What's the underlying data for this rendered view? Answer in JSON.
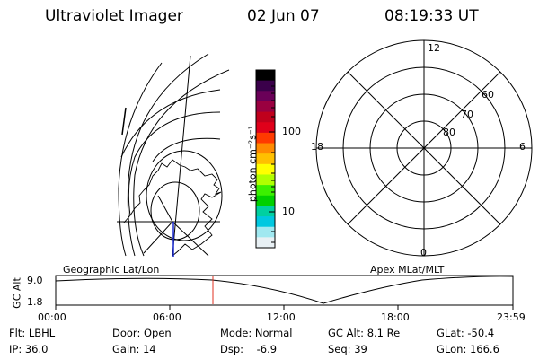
{
  "header": {
    "instrument": "Ultraviolet Imager",
    "date": "02 Jun 07",
    "time": "08:19:33 UT"
  },
  "colorbar": {
    "unit_label": "photon cm⁻²s⁻¹",
    "ticks": [
      "100",
      "10"
    ],
    "colors": [
      "#000000",
      "#3a004a",
      "#6a0058",
      "#9a0040",
      "#c0001c",
      "#e0001a",
      "#ff3a00",
      "#ff8a00",
      "#ffc000",
      "#ffff00",
      "#b0ff00",
      "#3cf000",
      "#00d000",
      "#00d0a0",
      "#00c8e0",
      "#a0e8f0",
      "#e8f0f4"
    ]
  },
  "polar_plot": {
    "hour_labels": {
      "top": "12",
      "left": "18",
      "right": "6",
      "bottom": "0"
    },
    "lat_labels": [
      "60",
      "70",
      "80"
    ]
  },
  "bottom_panel": {
    "left_caption": "Geographic Lat/Lon",
    "right_caption": "Apex MLat/MLT",
    "y_axis_label": "GC Alt",
    "y_ticks": [
      "9.0",
      "1.8"
    ],
    "x_ticks": [
      "00:00",
      "06:00",
      "12:00",
      "18:00",
      "23:59"
    ],
    "marker_color": "#e03020"
  },
  "info": {
    "filter": "Flt: LBHL",
    "door": "Door: Open",
    "mode": "Mode: Normal",
    "gc_alt": "GC Alt: 8.1 Re",
    "glat": "GLat: -50.4",
    "ip": "IP: 36.0",
    "gain": "Gain: 14",
    "dsp": "Dsp:    -6.9",
    "seq": "Seq: 39",
    "glon": "GLon: 166.6"
  }
}
